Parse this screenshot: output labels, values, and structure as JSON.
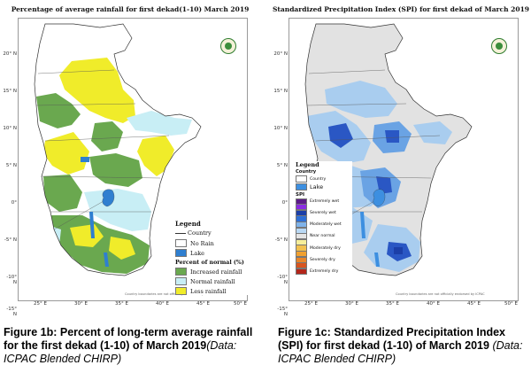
{
  "left_map": {
    "title": "Percentage of average rainfall for first dekad(1-10)  March 2019",
    "lat_labels": [
      "20° N",
      "15° N",
      "10° N",
      "5° N",
      "0°",
      "-5° N",
      "-10° N",
      "-15° N"
    ],
    "lon_labels": [
      "25° E",
      "30° E",
      "35° E",
      "40° E",
      "45° E",
      "50° E"
    ],
    "disclaimer": "Country boundaries are not officially endorsed by ICPAC",
    "legend": {
      "title": "Legend",
      "country": "Country",
      "no_rain": "No Rain",
      "lake": "Lake",
      "percent_title": "Percent of normal (%)",
      "increased": "Increased rainfall",
      "normal": "Normal rainfall",
      "less": "Less rainfall"
    },
    "colors": {
      "increased": "#6aa84f",
      "normal": "#c8eef5",
      "less": "#f0ec2a",
      "no_rain": "#ffffff",
      "lake": "#2f7fd0"
    }
  },
  "right_map": {
    "title": "Standardized Precipitation Index (SPI) for first dekad of March 2019",
    "lat_labels": [
      "20° N",
      "15° N",
      "10° N",
      "5° N",
      "0°",
      "-5° N",
      "-10° N",
      "-15° N"
    ],
    "lon_labels": [
      "25° E",
      "30° E",
      "35° E",
      "40° E",
      "45° E",
      "50° E"
    ],
    "disclaimer": "Country boundaries are not officially endorsed by ICPAC",
    "legend": {
      "title": "Legend",
      "country_header": "Country",
      "country": "Country",
      "lake": "Lake",
      "spi_header": "SPI",
      "classes": [
        {
          "label": "Extremely wet",
          "color": "#5b1a8a"
        },
        {
          "label": "",
          "color": "#8a2be2"
        },
        {
          "label": "Severely wet",
          "color": "#1c3fa8"
        },
        {
          "label": "",
          "color": "#2e6fd6"
        },
        {
          "label": "Moderately wet",
          "color": "#7fb3ea"
        },
        {
          "label": "",
          "color": "#b9d8f4"
        },
        {
          "label": "Near normal",
          "color": "#e4e4e4"
        },
        {
          "label": "",
          "color": "#f6ee9a"
        },
        {
          "label": "Moderately dry",
          "color": "#f2c04e"
        },
        {
          "label": "",
          "color": "#f0a030"
        },
        {
          "label": "Severely dry",
          "color": "#e8852a"
        },
        {
          "label": "",
          "color": "#d9541e"
        },
        {
          "label": "Extremely dry",
          "color": "#b3261a"
        }
      ]
    },
    "colors": {
      "near_normal": "#e2e2e2",
      "wet": "#a9cdef",
      "mod_wet": "#6aa3e4",
      "very_wet": "#2a57c4",
      "lake": "#3d8fe0"
    }
  },
  "captions": {
    "left_bold": "Figure 1b: Percent of long-term average rainfall for the first dekad (1-10) of March 2019",
    "left_note": "(Data: ICPAC Blended CHIRP)",
    "right_bold": "Figure 1c: Standardized Precipitation Index (SPI) for first dekad (1-10) of March 2019",
    "right_note": "(Data: ICPAC Blended CHIRP)"
  }
}
